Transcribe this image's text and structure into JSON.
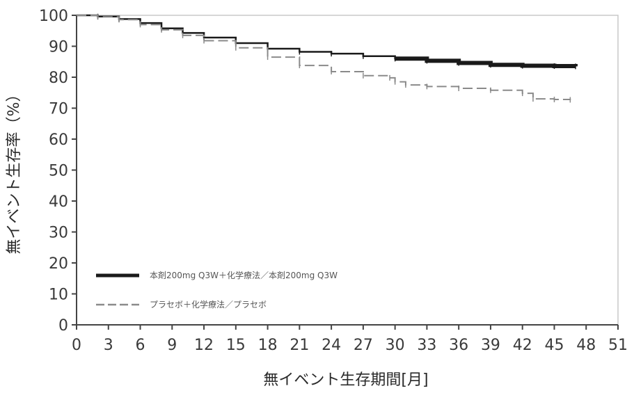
{
  "chart_data": {
    "type": "line",
    "title": "",
    "xlabel": "無イベント生存期間[月]",
    "ylabel": "無イベント生存率（%）",
    "xlim": [
      0,
      51
    ],
    "ylim": [
      0,
      100
    ],
    "xticks": [
      0,
      3,
      6,
      9,
      12,
      15,
      18,
      21,
      24,
      27,
      30,
      33,
      36,
      39,
      42,
      45,
      48,
      51
    ],
    "yticks": [
      0,
      10,
      20,
      30,
      40,
      50,
      60,
      70,
      80,
      90,
      100
    ],
    "grid": false,
    "legend": "bottom-left",
    "series": [
      {
        "name": "本剤200mg Q3W＋化学療法／本剤200mg Q3W",
        "color": "#1a1a1a",
        "dash": "solid",
        "x": [
          0,
          2,
          4,
          6,
          8,
          10,
          12,
          15,
          18,
          21,
          24,
          27,
          30,
          33,
          36,
          39,
          42,
          45,
          47
        ],
        "y": [
          100,
          99.6,
          98.8,
          97.5,
          95.8,
          94.3,
          92.8,
          91.0,
          89.2,
          88.2,
          87.6,
          86.8,
          86.0,
          85.3,
          84.6,
          84.0,
          83.7,
          83.6,
          83.5
        ]
      },
      {
        "name": "プラセボ＋化学療法／プラセボ",
        "color": "#8a8a8a",
        "dash": "dashed",
        "x": [
          0,
          2,
          4,
          6,
          8,
          10,
          12,
          15,
          18,
          21,
          24,
          27,
          29.5,
          30,
          31,
          33,
          36,
          39,
          42,
          43,
          45,
          46.5
        ],
        "y": [
          100,
          99.5,
          98.6,
          97.0,
          95.3,
          93.5,
          91.8,
          89.5,
          86.5,
          83.8,
          81.8,
          80.5,
          79.8,
          78.5,
          77.5,
          77.0,
          76.4,
          75.8,
          74.8,
          73.0,
          72.8,
          72.7
        ]
      }
    ]
  }
}
